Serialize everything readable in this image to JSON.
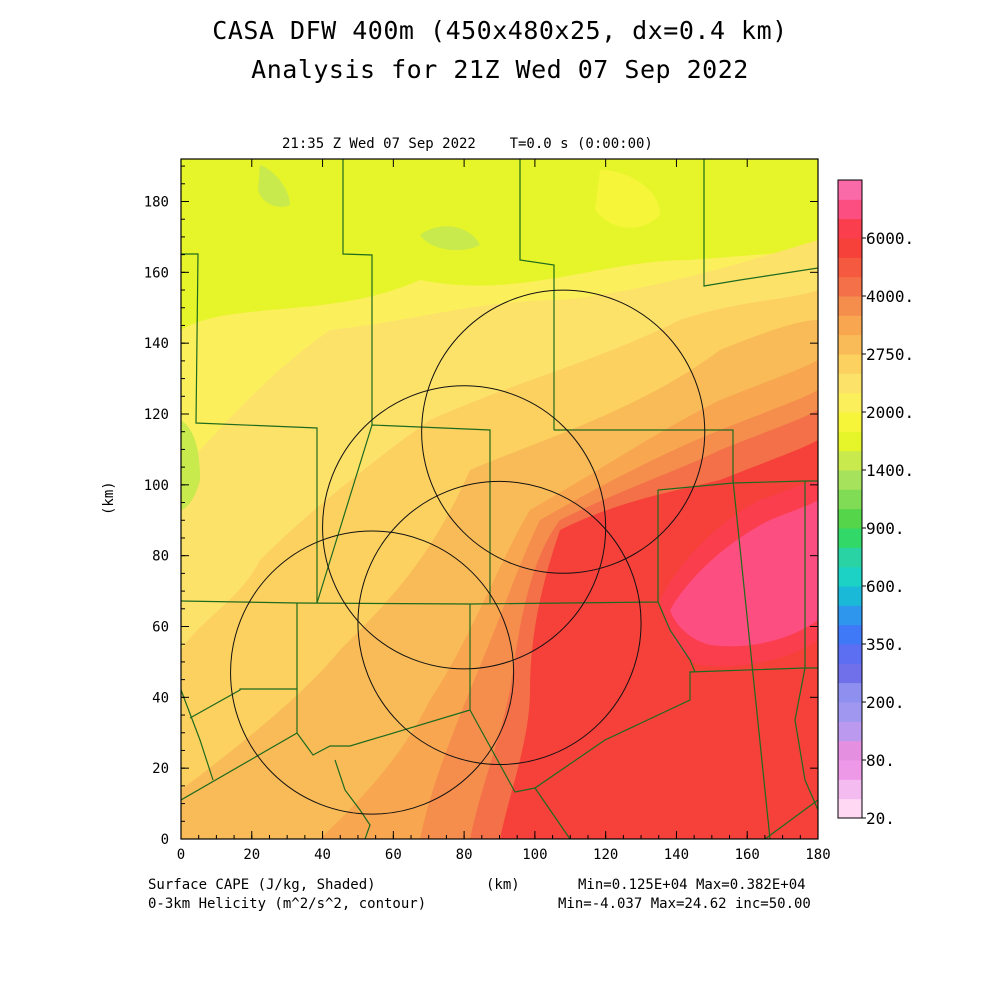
{
  "title": {
    "line1": "CASA DFW 400m (450x480x25, dx=0.4 km)",
    "line2": "Analysis for 21Z Wed 07 Sep 2022"
  },
  "subtitle": "21:35 Z Wed 07 Sep 2022    T=0.0 s (0:00:00)",
  "axes": {
    "x_unit": "(km)",
    "y_unit": "(km)",
    "x_ticks": [
      0,
      20,
      40,
      60,
      80,
      100,
      120,
      140,
      160,
      180
    ],
    "y_ticks": [
      0,
      20,
      40,
      60,
      80,
      100,
      120,
      140,
      160,
      180
    ],
    "x_range": [
      0,
      180
    ],
    "y_range": [
      0,
      192
    ]
  },
  "footer": {
    "left1": "Surface CAPE (J/kg, Shaded)",
    "left2": "0-3km Helicity (m^2/s^2, contour)",
    "center": "(km)",
    "right1": "Min=0.125E+04 Max=0.382E+04",
    "right2": "Min=-4.037 Max=24.62 inc=50.00"
  },
  "colorbar": {
    "colors": [
      "#ffd9f4",
      "#f4bbf0",
      "#ee99e8",
      "#e48fe0",
      "#bb99ee",
      "#9f97f0",
      "#8f8ff0",
      "#7070ea",
      "#5c6ef2",
      "#3f79f7",
      "#2e96ec",
      "#1ab9d8",
      "#1cd2c4",
      "#2ad3a4",
      "#32d868",
      "#54d54a",
      "#80dc54",
      "#a6e25c",
      "#c8ea4c",
      "#e6f52a",
      "#f6f53a",
      "#fcef5c",
      "#fde26a",
      "#fcd160",
      "#f9bb57",
      "#f8a750",
      "#f58e4d",
      "#f37048",
      "#f55a40",
      "#f6403a",
      "#fb3e4e",
      "#fc4e80",
      "#fa6aa8"
    ],
    "labels": [
      {
        "index": 0,
        "text": "20."
      },
      {
        "index": 3,
        "text": "80."
      },
      {
        "index": 6,
        "text": "200."
      },
      {
        "index": 9,
        "text": "350."
      },
      {
        "index": 12,
        "text": "600."
      },
      {
        "index": 15,
        "text": "900."
      },
      {
        "index": 18,
        "text": "1400."
      },
      {
        "index": 21,
        "text": "2000."
      },
      {
        "index": 24,
        "text": "2750."
      },
      {
        "index": 27,
        "text": "4000."
      },
      {
        "index": 30,
        "text": "6000."
      }
    ]
  },
  "helicity_circles_km": [
    {
      "cx": 108,
      "cy": 115,
      "r": 40
    },
    {
      "cx": 80,
      "cy": 88,
      "r": 40
    },
    {
      "cx": 90,
      "cy": 61,
      "r": 40
    },
    {
      "cx": 54,
      "cy": 47,
      "r": 40
    }
  ]
}
